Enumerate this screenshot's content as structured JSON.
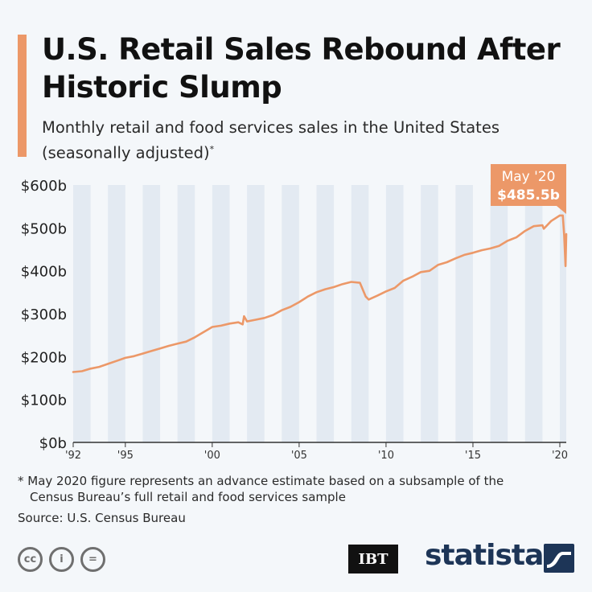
{
  "header": {
    "title": "U.S. Retail Sales Rebound After Historic Slump",
    "subtitle": "Monthly retail and food services sales in the United States (seasonally adjusted)",
    "subtitle_marker": "*"
  },
  "footer": {
    "footnote_line1": "* May 2020 figure represents an advance estimate based on a subsample of the",
    "footnote_line2": "Census Bureau’s full retail and food services sample",
    "source": "Source: U.S. Census Bureau",
    "license_icons": [
      "cc-icon",
      "attribution-icon",
      "no-derivatives-icon"
    ],
    "license_icon_labels": [
      "cc",
      "i",
      "="
    ],
    "publisher_logo": "IBT",
    "brand_logo": "statista"
  },
  "colors": {
    "accent": "#ec9868",
    "line": "#ec9868",
    "stripe": "#e3eaf2",
    "brand": "#1d3557"
  },
  "chart_data": {
    "type": "line",
    "title": "U.S. Retail Sales Rebound After Historic Slump",
    "xlabel": "",
    "ylabel": "",
    "x_range": [
      1992.0,
      2020.37
    ],
    "ylim": [
      0,
      600
    ],
    "y_ticks": [
      0,
      100,
      200,
      300,
      400,
      500,
      600
    ],
    "y_tick_labels": [
      "$0b",
      "$100b",
      "$200b",
      "$300b",
      "$400b",
      "$500b",
      "$600b"
    ],
    "x_ticks": [
      1992,
      1995,
      2000,
      2005,
      2010,
      2015,
      2020
    ],
    "x_tick_labels": [
      "'92",
      "'95",
      "'00",
      "'05",
      "'10",
      "'15",
      "'20"
    ],
    "grid": false,
    "alternating_year_bands": true,
    "series": [
      {
        "name": "Retail and food services sales ($b)",
        "x": [
          1992.0,
          1992.5,
          1993.0,
          1993.5,
          1994.0,
          1994.5,
          1995.0,
          1995.5,
          1996.0,
          1996.5,
          1997.0,
          1997.5,
          1998.0,
          1998.5,
          1999.0,
          1999.5,
          2000.0,
          2000.5,
          2001.0,
          2001.5,
          2001.75,
          2001.83,
          2002.0,
          2002.5,
          2003.0,
          2003.5,
          2004.0,
          2004.5,
          2005.0,
          2005.5,
          2006.0,
          2006.5,
          2007.0,
          2007.5,
          2008.0,
          2008.5,
          2008.83,
          2009.0,
          2009.5,
          2010.0,
          2010.5,
          2011.0,
          2011.5,
          2012.0,
          2012.5,
          2013.0,
          2013.5,
          2014.0,
          2014.5,
          2015.0,
          2015.5,
          2016.0,
          2016.5,
          2017.0,
          2017.5,
          2018.0,
          2018.5,
          2019.0,
          2019.08,
          2019.5,
          2020.0,
          2020.17,
          2020.25,
          2020.33,
          2020.37
        ],
        "values": [
          164,
          166,
          172,
          176,
          183,
          190,
          197,
          201,
          207,
          213,
          219,
          225,
          230,
          235,
          245,
          257,
          269,
          272,
          277,
          280,
          275,
          294,
          282,
          286,
          290,
          297,
          308,
          316,
          327,
          340,
          350,
          357,
          362,
          369,
          374,
          372,
          340,
          333,
          342,
          352,
          360,
          377,
          386,
          397,
          400,
          414,
          420,
          429,
          437,
          442,
          448,
          452,
          458,
          470,
          478,
          493,
          504,
          506,
          498,
          516,
          529,
          529,
          483,
          411,
          485.5
        ]
      }
    ],
    "annotation": {
      "label": "May '20",
      "value_label": "$485.5b",
      "x": 2020.37,
      "y": 485.5
    }
  }
}
